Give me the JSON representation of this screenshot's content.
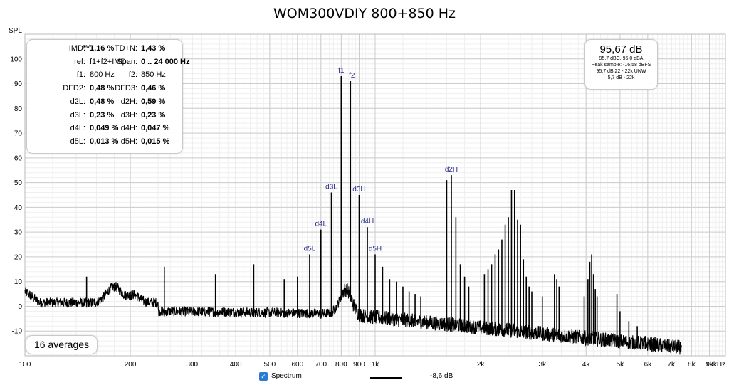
{
  "chart_data": {
    "type": "line",
    "title": "WOM300VDIY 800+850 Hz",
    "ylabel": "SPL",
    "xlabel": "",
    "x_scale": "log",
    "xlim": [
      100,
      10000
    ],
    "ylim": [
      -20,
      110
    ],
    "x_ticks": [
      {
        "value": 100,
        "label": "100"
      },
      {
        "value": 200,
        "label": "200"
      },
      {
        "value": 300,
        "label": "300"
      },
      {
        "value": 400,
        "label": "400"
      },
      {
        "value": 500,
        "label": "500"
      },
      {
        "value": 600,
        "label": "600"
      },
      {
        "value": 700,
        "label": "700"
      },
      {
        "value": 800,
        "label": "800"
      },
      {
        "value": 900,
        "label": "900"
      },
      {
        "value": 1000,
        "label": "1k"
      },
      {
        "value": 2000,
        "label": "2k"
      },
      {
        "value": 3000,
        "label": "3k"
      },
      {
        "value": 4000,
        "label": "4k"
      },
      {
        "value": 5000,
        "label": "5k"
      },
      {
        "value": 6000,
        "label": "6k"
      },
      {
        "value": 7000,
        "label": "7k"
      },
      {
        "value": 8000,
        "label": "8k"
      },
      {
        "value": 9000,
        "label": "9k"
      },
      {
        "value": 10000,
        "label": "10kHz"
      }
    ],
    "y_ticks": [
      -10,
      0,
      10,
      20,
      30,
      40,
      50,
      60,
      70,
      80,
      90,
      100
    ],
    "grid": true,
    "series": [
      {
        "name": "Spectrum",
        "legend_value": "-8,6 dB",
        "color": "#000000"
      }
    ],
    "peaks": [
      [
        150,
        12
      ],
      [
        180,
        8
      ],
      [
        200,
        6
      ],
      [
        250,
        16
      ],
      [
        350,
        13
      ],
      [
        450,
        17
      ],
      [
        550,
        11
      ],
      [
        600,
        12
      ],
      [
        650,
        21
      ],
      [
        700,
        31
      ],
      [
        750,
        46
      ],
      [
        800,
        93
      ],
      [
        850,
        91
      ],
      [
        900,
        45
      ],
      [
        950,
        32
      ],
      [
        1000,
        21
      ],
      [
        1050,
        16
      ],
      [
        1100,
        11
      ],
      [
        1150,
        10
      ],
      [
        1200,
        8
      ],
      [
        1250,
        6
      ],
      [
        1300,
        5
      ],
      [
        1350,
        4
      ],
      [
        1600,
        51
      ],
      [
        1650,
        53
      ],
      [
        1700,
        36
      ],
      [
        1750,
        17
      ],
      [
        1800,
        12
      ],
      [
        1850,
        8
      ],
      [
        2050,
        13
      ],
      [
        2100,
        15
      ],
      [
        2150,
        17
      ],
      [
        2200,
        21
      ],
      [
        2250,
        23
      ],
      [
        2300,
        27
      ],
      [
        2350,
        33
      ],
      [
        2400,
        36
      ],
      [
        2450,
        47
      ],
      [
        2500,
        47
      ],
      [
        2550,
        35
      ],
      [
        2600,
        33
      ],
      [
        2650,
        19
      ],
      [
        2700,
        12
      ],
      [
        2750,
        8
      ],
      [
        2800,
        6
      ],
      [
        3000,
        4
      ],
      [
        3250,
        13
      ],
      [
        3300,
        11
      ],
      [
        3350,
        8
      ],
      [
        3950,
        4
      ],
      [
        4050,
        11
      ],
      [
        4100,
        18
      ],
      [
        4150,
        21
      ],
      [
        4200,
        13
      ],
      [
        4250,
        7
      ],
      [
        4300,
        4
      ],
      [
        4900,
        5
      ],
      [
        5000,
        -2
      ],
      [
        5300,
        -6
      ],
      [
        5600,
        -8
      ],
      [
        5900,
        -12
      ],
      [
        7300,
        -15
      ]
    ],
    "peak_labels": [
      {
        "label": "f1",
        "x": 800,
        "y": 93
      },
      {
        "label": "f2",
        "x": 850,
        "y": 91
      },
      {
        "label": "d3L",
        "x": 750,
        "y": 46
      },
      {
        "label": "d3H",
        "x": 900,
        "y": 45
      },
      {
        "label": "d4L",
        "x": 700,
        "y": 31
      },
      {
        "label": "d4H",
        "x": 950,
        "y": 32
      },
      {
        "label": "d5L",
        "x": 650,
        "y": 21
      },
      {
        "label": "d5H",
        "x": 1000,
        "y": 21
      },
      {
        "label": "d2H",
        "x": 1650,
        "y": 53
      }
    ]
  },
  "imd_panel": {
    "imd_label": "IMD",
    "imd_sub": "pwr",
    "imd_colon": ":",
    "rows": [
      {
        "k1": "",
        "v1": "1,16 %",
        "k2": "TD+N:",
        "v2": "1,43 %",
        "b1": true,
        "b2": true
      },
      {
        "k1": "ref:",
        "v1": "f1+f2+IMD",
        "k2": "Span:",
        "v2": "0 .. 24 000 Hz",
        "b1": false,
        "b2": true
      },
      {
        "k1": "f1:",
        "v1": "800 Hz",
        "k2": "f2:",
        "v2": "850 Hz",
        "b1": false,
        "b2": false
      },
      {
        "k1": "DFD2:",
        "v1": "0,48 %",
        "k2": "DFD3:",
        "v2": "0,46 %",
        "b1": true,
        "b2": true
      },
      {
        "k1": "d2L:",
        "v1": "0,48 %",
        "k2": "d2H:",
        "v2": "0,59 %",
        "b1": true,
        "b2": true
      },
      {
        "k1": "d3L:",
        "v1": "0,23 %",
        "k2": "d3H:",
        "v2": "0,23 %",
        "b1": true,
        "b2": true
      },
      {
        "k1": "d4L:",
        "v1": "0,049 %",
        "k2": "d4H:",
        "v2": "0,047 %",
        "b1": true,
        "b2": true
      },
      {
        "k1": "d5L:",
        "v1": "0,013 %",
        "k2": "d5H:",
        "v2": "0,015 %",
        "b1": true,
        "b2": true
      }
    ]
  },
  "level_panel": {
    "main": "95,67 dB",
    "lines": [
      "95,7 dBC, 95,0 dBA",
      "Peak sample: -16,58 dBFS",
      "95,7 dB 22 - 22k UNW",
      "5,7 dB - 22k"
    ]
  },
  "averages": "16 averages",
  "legend": {
    "name": "Spectrum",
    "value": "-8,6 dB",
    "checked": true
  }
}
